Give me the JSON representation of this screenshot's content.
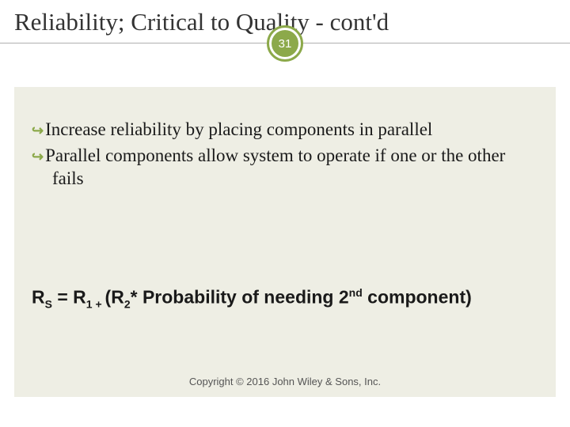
{
  "title": "Reliability; Critical to Quality - cont'd",
  "slide_number": "31",
  "bullets": [
    "Increase reliability by placing components in parallel",
    "Parallel components allow system to operate if one or the other fails"
  ],
  "formula": {
    "lhs": "R",
    "lhs_sub": "S",
    "eq": " = R",
    "r1_sub": "1 + ",
    "open": "(R",
    "r2_sub": "2",
    "mid": "* Probability of needing 2",
    "sup": "nd",
    "end": " component)"
  },
  "footer": "Copyright © 2016 John Wiley & Sons, Inc.",
  "colors": {
    "accent": "#8ca94a",
    "content_bg": "#eeeee4",
    "title_color": "#333333",
    "text_color": "#1a1a1a"
  }
}
